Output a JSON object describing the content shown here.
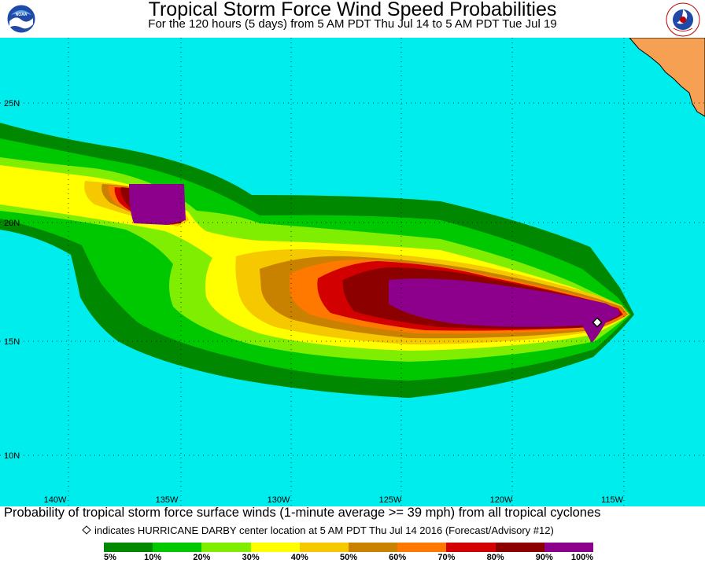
{
  "header": {
    "title": "Tropical Storm Force Wind Speed Probabilities",
    "subtitle": "For the 120 hours (5 days) from 5 AM PDT Thu Jul 14 to 5 AM PDT Tue Jul 19",
    "logo_left": "NOAA",
    "logo_right": "NATIONAL WEATHER SERVICE"
  },
  "map": {
    "ocean_color": "#00eded",
    "land_color": "#f5a052",
    "lat_labels": [
      "25N",
      "20N",
      "15N",
      "10N"
    ],
    "lon_labels": [
      "140W",
      "135W",
      "130W",
      "125W",
      "120W",
      "115W"
    ],
    "storm_marker": "center-diamond"
  },
  "caption": "Probability of tropical storm force surface winds (1-minute average >= 39 mph) from all tropical cyclones",
  "marker_note": "indicates HURRICANE DARBY center location at 5 AM PDT Thu Jul 14 2016 (Forecast/Advisory #12)",
  "legend": {
    "colors": [
      "#008800",
      "#00c800",
      "#80ee00",
      "#ffff00",
      "#f5c800",
      "#c88200",
      "#ff7800",
      "#d20000",
      "#8c0000",
      "#8c008c"
    ],
    "labels": [
      "5%",
      "10%",
      "20%",
      "30%",
      "40%",
      "50%",
      "60%",
      "70%",
      "80%",
      "90%",
      "100%"
    ]
  }
}
